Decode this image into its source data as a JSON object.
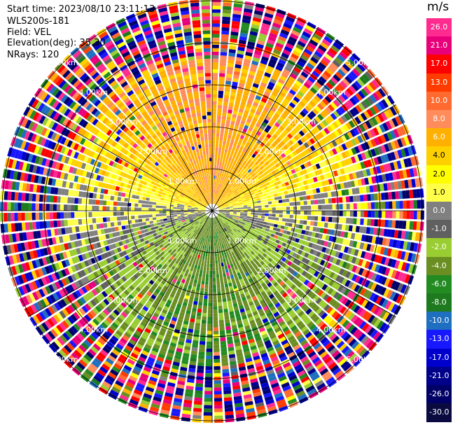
{
  "info": {
    "start_time": "Start time: 2023/08/10 23:11:13",
    "instrument": "WLS200s-181",
    "field": "Field: VEL",
    "elevation": "Elevation(deg): 35.30",
    "nrays": "NRays: 120"
  },
  "colorbar": {
    "unit": "m/s",
    "ticks": [
      "26.0",
      "21.0",
      "17.0",
      "13.0",
      "10.0",
      "8.0",
      "6.0",
      "4.0",
      "2.0",
      "1.0",
      "0.0",
      "-1.0",
      "-2.0",
      "-4.0",
      "-6.0",
      "-8.0",
      "-10.0",
      "-13.0",
      "-17.0",
      "-21.0",
      "-26.0",
      "-30.0"
    ],
    "colors": [
      "#ff2b8f",
      "#e8007a",
      "#ff0000",
      "#ff3c00",
      "#ff6a30",
      "#ff8c5a",
      "#ffb000",
      "#ffd000",
      "#ffff00",
      "#ffff4a",
      "#808080",
      "#606060",
      "#9acd32",
      "#6b8e23",
      "#228b22",
      "#1e7a1e",
      "#1e6fbf",
      "#1818ff",
      "#0000cc",
      "#00008b",
      "#000066",
      "#0a0a40"
    ]
  },
  "chart_data": {
    "type": "ppi",
    "field": "VEL",
    "units": "m/s",
    "range_ring_labels": [
      "1.00km",
      "2.00km",
      "3.00km",
      "4.00km",
      "5.00km"
    ],
    "vmin": -30,
    "vmax": 26,
    "grid": true
  }
}
